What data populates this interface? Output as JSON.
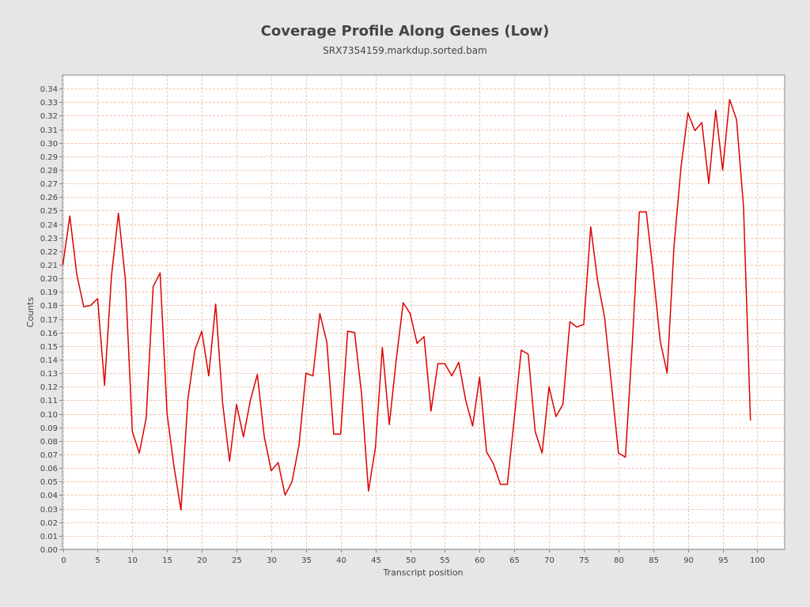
{
  "chart_data": {
    "type": "line",
    "title": "Coverage Profile Along Genes (Low)",
    "subtitle": "SRX7354159.markdup.sorted.bam",
    "xlabel": "Transcript position",
    "ylabel": "Counts",
    "xlim": [
      0,
      104
    ],
    "ylim": [
      0,
      0.35
    ],
    "x_ticks": [
      0,
      5,
      10,
      15,
      20,
      25,
      30,
      35,
      40,
      45,
      50,
      55,
      60,
      65,
      70,
      75,
      80,
      85,
      90,
      95,
      100
    ],
    "y_ticks": [
      "0.00",
      "0.01",
      "0.02",
      "0.03",
      "0.04",
      "0.05",
      "0.06",
      "0.07",
      "0.08",
      "0.09",
      "0.10",
      "0.11",
      "0.12",
      "0.13",
      "0.14",
      "0.15",
      "0.16",
      "0.17",
      "0.18",
      "0.19",
      "0.20",
      "0.21",
      "0.22",
      "0.23",
      "0.24",
      "0.25",
      "0.26",
      "0.27",
      "0.28",
      "0.29",
      "0.30",
      "0.31",
      "0.32",
      "0.33",
      "0.34"
    ],
    "grid": true,
    "colors": {
      "line": "#dd0000",
      "grid": "#f0c8b0",
      "plot_bg": "#ffffff",
      "page_bg": "#e6e6e6"
    },
    "series": [
      {
        "x": [
          0,
          1,
          2,
          3,
          4,
          5,
          6,
          7,
          8,
          9,
          10,
          11,
          12,
          13,
          14,
          15,
          16,
          17,
          18,
          19,
          20,
          21,
          22,
          23,
          24,
          25,
          26,
          27,
          28,
          29,
          30,
          31,
          32,
          33,
          34,
          35,
          36,
          37,
          38,
          39,
          40,
          41,
          42,
          43,
          44,
          45,
          46,
          47,
          48,
          49,
          50,
          51,
          52,
          53,
          54,
          55,
          56,
          57,
          58,
          59,
          60,
          61,
          62,
          63,
          64,
          65,
          66,
          67,
          68,
          69,
          70,
          71,
          72,
          73,
          74,
          75,
          76,
          77,
          78,
          79,
          80,
          81,
          82,
          83,
          84,
          85,
          86,
          87,
          88,
          89,
          90,
          91,
          92,
          93,
          94,
          95,
          96,
          97,
          98,
          99
        ],
        "y": [
          0.21,
          0.246,
          0.203,
          0.179,
          0.18,
          0.185,
          0.121,
          0.202,
          0.248,
          0.199,
          0.087,
          0.071,
          0.097,
          0.194,
          0.204,
          0.1,
          0.061,
          0.029,
          0.111,
          0.147,
          0.161,
          0.128,
          0.181,
          0.108,
          0.065,
          0.107,
          0.083,
          0.11,
          0.129,
          0.083,
          0.058,
          0.064,
          0.04,
          0.05,
          0.077,
          0.13,
          0.128,
          0.174,
          0.153,
          0.085,
          0.085,
          0.161,
          0.16,
          0.115,
          0.043,
          0.075,
          0.149,
          0.092,
          0.14,
          0.182,
          0.174,
          0.152,
          0.157,
          0.102,
          0.137,
          0.137,
          0.128,
          0.138,
          0.11,
          0.091,
          0.127,
          0.072,
          0.063,
          0.048,
          0.048,
          0.097,
          0.147,
          0.144,
          0.087,
          0.071,
          0.12,
          0.098,
          0.107,
          0.168,
          0.164,
          0.166,
          0.238,
          0.198,
          0.171,
          0.121,
          0.071,
          0.068,
          0.153,
          0.249,
          0.249,
          0.204,
          0.154,
          0.13,
          0.224,
          0.282,
          0.322,
          0.309,
          0.315,
          0.27,
          0.324,
          0.28,
          0.332,
          0.317,
          0.253,
          0.095
        ]
      }
    ]
  }
}
